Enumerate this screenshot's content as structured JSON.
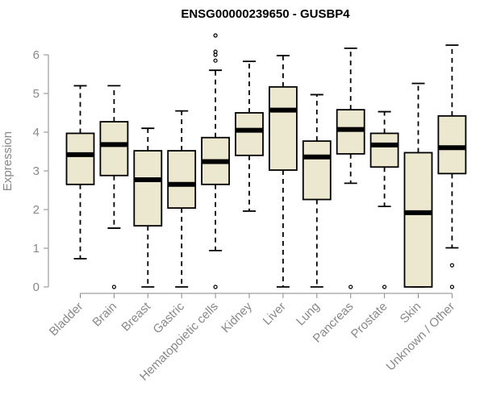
{
  "chart_data": {
    "type": "boxplot",
    "title": "ENSG00000239650 - GUSBP4",
    "ylabel": "Expression",
    "ylim": [
      0,
      6.5
    ],
    "yticks": [
      0,
      1,
      2,
      3,
      4,
      5,
      6
    ],
    "categories": [
      "Bladder",
      "Brain",
      "Breast",
      "Gastric",
      "Hematopoietic cells",
      "Kidney",
      "Liver",
      "Lung",
      "Pancreas",
      "Prostate",
      "Skin",
      "Unknown / Other"
    ],
    "box_fill": "#ece7cf",
    "boxes": [
      {
        "category": "Bladder",
        "whisker_low": 0.73,
        "q1": 2.65,
        "median": 3.42,
        "q3": 3.97,
        "whisker_high": 5.2,
        "outliers": []
      },
      {
        "category": "Brain",
        "whisker_low": 1.52,
        "q1": 2.88,
        "median": 3.68,
        "q3": 4.27,
        "whisker_high": 5.2,
        "outliers": [
          0
        ]
      },
      {
        "category": "Breast",
        "whisker_low": 0,
        "q1": 1.58,
        "median": 2.77,
        "q3": 3.52,
        "whisker_high": 4.1,
        "outliers": []
      },
      {
        "category": "Gastric",
        "whisker_low": 0,
        "q1": 2.04,
        "median": 2.65,
        "q3": 3.52,
        "whisker_high": 4.55,
        "outliers": []
      },
      {
        "category": "Hematopoietic cells",
        "whisker_low": 0.94,
        "q1": 2.65,
        "median": 3.24,
        "q3": 3.86,
        "whisker_high": 5.6,
        "outliers": [
          0,
          5.85,
          6.0,
          6.08,
          6.5
        ]
      },
      {
        "category": "Kidney",
        "whisker_low": 1.96,
        "q1": 3.4,
        "median": 4.05,
        "q3": 4.5,
        "whisker_high": 5.83,
        "outliers": []
      },
      {
        "category": "Liver",
        "whisker_low": 0,
        "q1": 3.02,
        "median": 4.57,
        "q3": 5.17,
        "whisker_high": 5.98,
        "outliers": []
      },
      {
        "category": "Lung",
        "whisker_low": 0,
        "q1": 2.26,
        "median": 3.36,
        "q3": 3.77,
        "whisker_high": 4.97,
        "outliers": []
      },
      {
        "category": "Pancreas",
        "whisker_low": 2.68,
        "q1": 3.44,
        "median": 4.07,
        "q3": 4.58,
        "whisker_high": 6.17,
        "outliers": [
          0
        ]
      },
      {
        "category": "Prostate",
        "whisker_low": 2.08,
        "q1": 3.1,
        "median": 3.67,
        "q3": 3.97,
        "whisker_high": 4.53,
        "outliers": [
          0
        ]
      },
      {
        "category": "Skin",
        "whisker_low": 0,
        "q1": 0,
        "median": 1.92,
        "q3": 3.47,
        "whisker_high": 5.26,
        "outliers": []
      },
      {
        "category": "Unknown / Other",
        "whisker_low": 1.01,
        "q1": 2.93,
        "median": 3.6,
        "q3": 4.42,
        "whisker_high": 6.25,
        "outliers": [
          0,
          0.56
        ]
      }
    ]
  }
}
